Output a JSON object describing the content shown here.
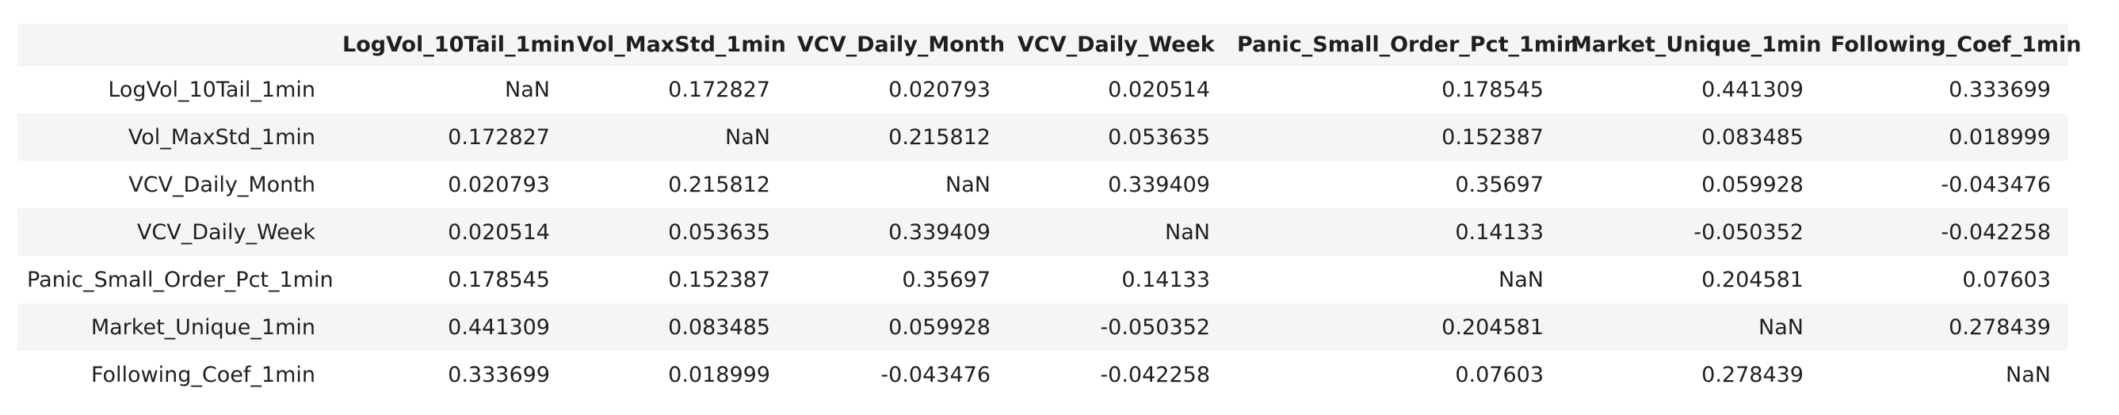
{
  "table": {
    "index_header": "",
    "columns": [
      "LogVol_10Tail_1min",
      "Vol_MaxStd_1min",
      "VCV_Daily_Month",
      "VCV_Daily_Week",
      "Panic_Small_Order_Pct_1min",
      "Market_Unique_1min",
      "Following_Coef_1min"
    ],
    "rows": [
      {
        "label": "LogVol_10Tail_1min",
        "values": [
          "NaN",
          "0.172827",
          "0.020793",
          "0.020514",
          "0.178545",
          "0.441309",
          "0.333699"
        ]
      },
      {
        "label": "Vol_MaxStd_1min",
        "values": [
          "0.172827",
          "NaN",
          "0.215812",
          "0.053635",
          "0.152387",
          "0.083485",
          "0.018999"
        ]
      },
      {
        "label": "VCV_Daily_Month",
        "values": [
          "0.020793",
          "0.215812",
          "NaN",
          "0.339409",
          "0.35697",
          "0.059928",
          "-0.043476"
        ]
      },
      {
        "label": "VCV_Daily_Week",
        "values": [
          "0.020514",
          "0.053635",
          "0.339409",
          "NaN",
          "0.14133",
          "-0.050352",
          "-0.042258"
        ]
      },
      {
        "label": "Panic_Small_Order_Pct_1min",
        "values": [
          "0.178545",
          "0.152387",
          "0.35697",
          "0.14133",
          "NaN",
          "0.204581",
          "0.07603"
        ]
      },
      {
        "label": "Market_Unique_1min",
        "values": [
          "0.441309",
          "0.083485",
          "0.059928",
          "-0.050352",
          "0.204581",
          "NaN",
          "0.278439"
        ]
      },
      {
        "label": "Following_Coef_1min",
        "values": [
          "0.333699",
          "0.018999",
          "-0.043476",
          "-0.042258",
          "0.07603",
          "0.278439",
          "NaN"
        ]
      }
    ]
  }
}
